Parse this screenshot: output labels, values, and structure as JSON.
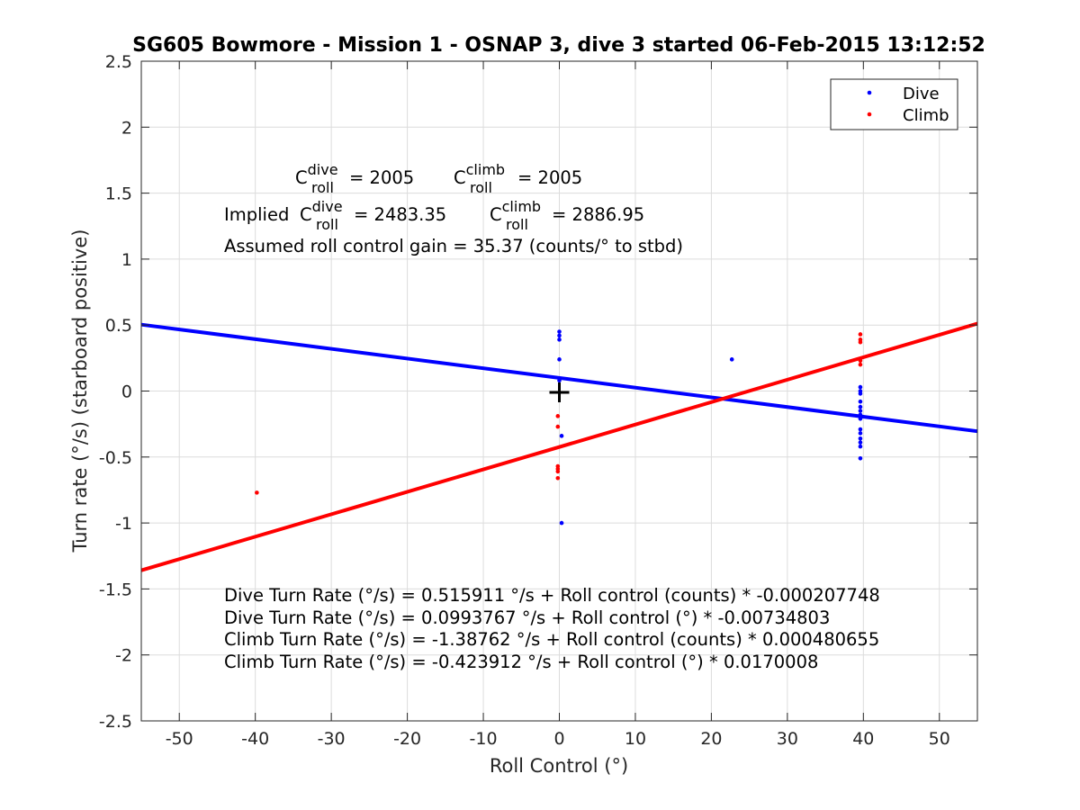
{
  "chart_data": {
    "type": "scatter",
    "title": "SG605 Bowmore - Mission 1 - OSNAP 3, dive 3 started 06-Feb-2015 13:12:52",
    "xlabel": "Roll Control (°)",
    "ylabel": "Turn rate (°/s) (starboard positive)",
    "xlim": [
      -55,
      55
    ],
    "ylim": [
      -2.5,
      2.5
    ],
    "xticks": [
      -50,
      -40,
      -30,
      -20,
      -10,
      0,
      10,
      20,
      30,
      40,
      50
    ],
    "yticks": [
      -2.5,
      -2,
      -1.5,
      -1,
      -0.5,
      0,
      0.5,
      1,
      1.5,
      2,
      2.5
    ],
    "ytick_labels": [
      "-2.5",
      "-2",
      "-1.5",
      "-1",
      "-0.5",
      "0",
      "0.5",
      "1",
      "1.5",
      "2",
      "2.5"
    ],
    "grid": true,
    "legend_position": "top-right",
    "series": [
      {
        "name": "Dive",
        "color": "#0000ff",
        "points": [
          [
            0,
            0.45
          ],
          [
            0,
            0.42
          ],
          [
            0,
            0.39
          ],
          [
            0,
            0.24
          ],
          [
            0,
            0.08
          ],
          [
            0.3,
            -0.34
          ],
          [
            0.3,
            -1.0
          ],
          [
            22.7,
            0.24
          ],
          [
            39.6,
            0.03
          ],
          [
            39.6,
            0.0
          ],
          [
            39.6,
            -0.02
          ],
          [
            39.6,
            -0.08
          ],
          [
            39.6,
            -0.12
          ],
          [
            39.6,
            -0.15
          ],
          [
            39.6,
            -0.18
          ],
          [
            39.6,
            -0.21
          ],
          [
            39.6,
            -0.29
          ],
          [
            39.6,
            -0.32
          ],
          [
            39.6,
            -0.36
          ],
          [
            39.6,
            -0.39
          ],
          [
            39.6,
            -0.42
          ],
          [
            39.6,
            -0.51
          ]
        ],
        "fit": {
          "intercept": 0.0993767,
          "slope": -0.00734803
        }
      },
      {
        "name": "Climb",
        "color": "#ff0000",
        "points": [
          [
            -39.8,
            -0.77
          ],
          [
            -0.2,
            -0.19
          ],
          [
            -0.2,
            -0.27
          ],
          [
            -0.2,
            -0.57
          ],
          [
            -0.2,
            -0.59
          ],
          [
            -0.2,
            -0.61
          ],
          [
            -0.2,
            -0.66
          ],
          [
            39.6,
            0.43
          ],
          [
            39.6,
            0.39
          ],
          [
            39.6,
            0.37
          ],
          [
            39.6,
            0.23
          ],
          [
            39.6,
            0.2
          ]
        ],
        "fit": {
          "intercept": -0.423912,
          "slope": 0.0170008
        }
      }
    ],
    "marker": {
      "x": 0,
      "y": -0.01,
      "symbol": "+",
      "color": "#000000"
    },
    "annotations": {
      "c_roll": {
        "base": "C",
        "sub": "roll",
        "sup_dive": "dive",
        "sup_climb": "climb"
      },
      "line1": {
        "dive_value": "= 2005",
        "climb_value": "= 2005"
      },
      "line2": {
        "prefix": "Implied",
        "dive_value": "= 2483.35",
        "climb_value": "= 2886.95"
      },
      "line3": "Assumed roll control gain = 35.37 (counts/° to stbd)",
      "equations": [
        "Dive Turn Rate (°/s) = 0.515911 °/s + Roll control (counts) * -0.000207748",
        "Dive Turn Rate (°/s) = 0.0993767 °/s + Roll control (°) * -0.00734803",
        "Climb Turn Rate (°/s) = -1.38762 °/s + Roll control (counts) * 0.000480655",
        "Climb Turn Rate (°/s) = -0.423912 °/s + Roll control (°) * 0.0170008"
      ]
    }
  }
}
